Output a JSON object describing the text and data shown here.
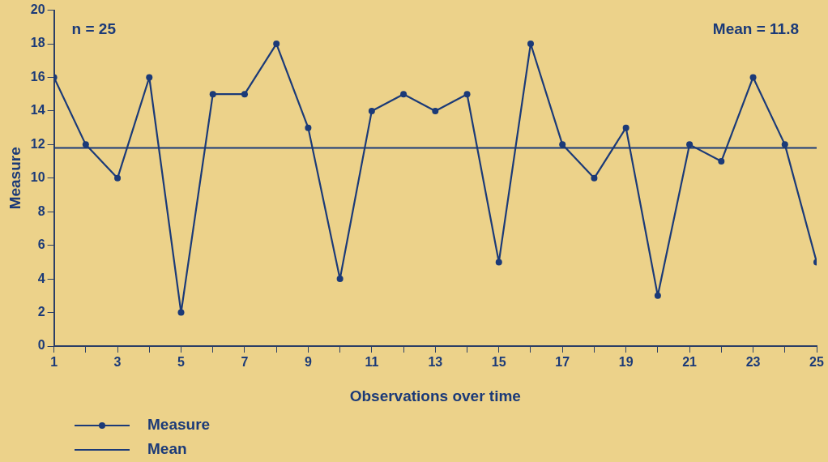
{
  "chart_data": {
    "type": "line",
    "xlabel": "Observations over time",
    "ylabel": "Measure",
    "x": [
      1,
      2,
      3,
      4,
      5,
      6,
      7,
      8,
      9,
      10,
      11,
      12,
      13,
      14,
      15,
      16,
      17,
      18,
      19,
      20,
      21,
      22,
      23,
      24,
      25
    ],
    "series": [
      {
        "name": "Measure",
        "color": "#1b3a78",
        "values": [
          16,
          12,
          10,
          16,
          2,
          15,
          15,
          18,
          13,
          4,
          14,
          15,
          14,
          15,
          5,
          18,
          12,
          10,
          13,
          3,
          12,
          11,
          16,
          12,
          5
        ]
      }
    ],
    "xlim": [
      1,
      25
    ],
    "xticks": [
      1,
      {
        "value": 2,
        "label": null
      },
      3,
      {
        "value": 4,
        "label": null
      },
      5,
      {
        "value": 6,
        "label": null
      },
      7,
      {
        "value": 8,
        "label": null
      },
      9,
      {
        "value": 10,
        "label": null
      },
      11,
      {
        "value": 12,
        "label": null
      },
      13,
      {
        "value": 14,
        "label": null
      },
      15,
      {
        "value": 16,
        "label": null
      },
      17,
      {
        "value": 18,
        "label": null
      },
      19,
      {
        "value": 20,
        "label": null
      },
      21,
      {
        "value": 22,
        "label": null
      },
      23,
      {
        "value": 24,
        "label": null
      },
      25
    ],
    "ylim": [
      0,
      20
    ],
    "yticks": [
      0,
      2,
      4,
      6,
      8,
      10,
      12,
      14,
      16,
      18,
      20
    ],
    "ref_lines": [
      {
        "axis": "y",
        "value": 11.8,
        "label": "Mean",
        "color": "#1b3a78"
      }
    ],
    "annotations": [
      "n = 25",
      "Mean = 11.8"
    ],
    "marker": "circle",
    "line_style": "solid",
    "grid": false,
    "legend": "bottom left"
  }
}
